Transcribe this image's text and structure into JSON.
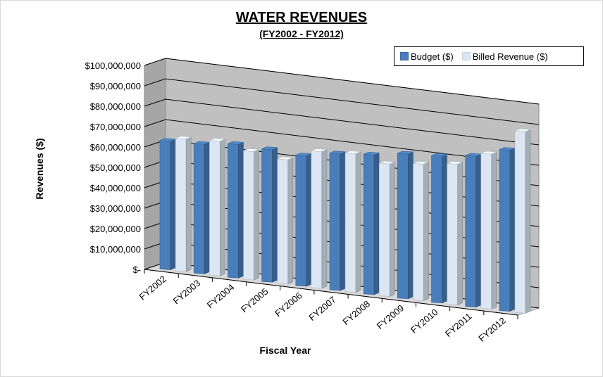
{
  "chart_data": {
    "type": "bar",
    "title": "WATER REVENUES",
    "subtitle": "(FY2002 - FY2012)",
    "xlabel": "Fiscal Year",
    "ylabel": "Revenues ($)",
    "ylim": [
      0,
      100000000
    ],
    "y_ticks": [
      "$-",
      "$10,000,000",
      "$20,000,000",
      "$30,000,000",
      "$40,000,000",
      "$50,000,000",
      "$60,000,000",
      "$70,000,000",
      "$80,000,000",
      "$90,000,000",
      "$100,000,000"
    ],
    "categories": [
      "FY2002",
      "FY2003",
      "FY2004",
      "FY2005",
      "FY2006",
      "FY2007",
      "FY2008",
      "FY2009",
      "FY2010",
      "FY2011",
      "FY2012"
    ],
    "series": [
      {
        "name": "Budget ($)",
        "color": "#4a7ebb",
        "values": [
          63000000,
          63500000,
          65500000,
          65000000,
          64000000,
          67000000,
          68500000,
          71000000,
          72000000,
          74000000,
          79000000
        ]
      },
      {
        "name": "Billed Revenue ($)",
        "color": "#dce6f2",
        "values": [
          65000000,
          66000000,
          63000000,
          61000000,
          67000000,
          68000000,
          65000000,
          67000000,
          69000000,
          76000000,
          89000000
        ]
      }
    ],
    "grid": true,
    "legend_position": "top-right"
  }
}
